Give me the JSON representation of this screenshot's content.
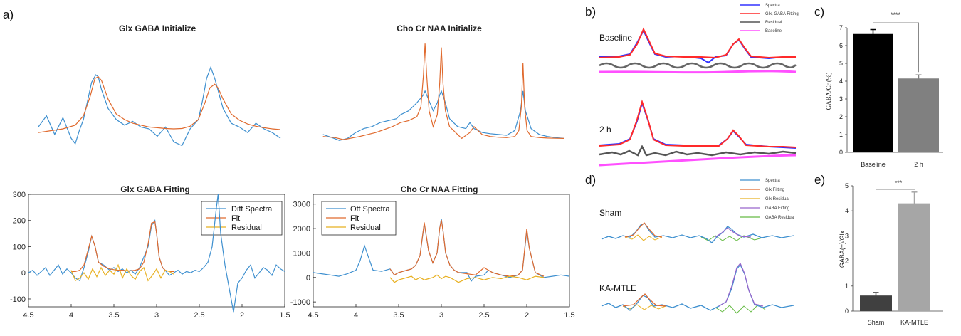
{
  "panel_labels": {
    "a": "a)",
    "b": "b)",
    "c": "c)",
    "d": "d)",
    "e": "e)"
  },
  "colors": {
    "blue": "#3d8fcf",
    "orange": "#e06a2e",
    "yellow": "#e8b020",
    "axis": "#262626",
    "red": "#ff2a2a",
    "magenta": "#ff50ff",
    "gray": "#666666",
    "spec_blue": "#3333ff",
    "green": "#66bb44",
    "purple": "#9966cc"
  },
  "chart_data": [
    {
      "id": "glx_init",
      "type": "line",
      "title": "Glx GABA Initialize",
      "xlim": [
        4.5,
        1.5
      ],
      "ylim": [
        -60,
        240
      ],
      "axes": false,
      "series": [
        {
          "name": "Spectra",
          "x": [
            4.45,
            4.35,
            4.25,
            4.15,
            4.05,
            4.0,
            3.95,
            3.9,
            3.85,
            3.8,
            3.75,
            3.72,
            3.68,
            3.6,
            3.5,
            3.4,
            3.3,
            3.2,
            3.1,
            3.0,
            2.9,
            2.8,
            2.7,
            2.6,
            2.5,
            2.45,
            2.4,
            2.35,
            2.3,
            2.25,
            2.2,
            2.15,
            2.1,
            2.0,
            1.9,
            1.8,
            1.7,
            1.6,
            1.5
          ],
          "y": [
            10,
            40,
            -10,
            35,
            -20,
            -35,
            0,
            30,
            80,
            130,
            150,
            145,
            110,
            60,
            30,
            15,
            25,
            10,
            5,
            -15,
            10,
            -30,
            -40,
            5,
            30,
            80,
            140,
            170,
            140,
            100,
            60,
            40,
            20,
            10,
            -5,
            20,
            5,
            -5,
            -20
          ]
        },
        {
          "name": "Fit",
          "x": [
            4.45,
            4.3,
            4.15,
            4.0,
            3.9,
            3.82,
            3.76,
            3.72,
            3.68,
            3.6,
            3.5,
            3.4,
            3.3,
            3.2,
            3.1,
            3.0,
            2.9,
            2.8,
            2.7,
            2.6,
            2.5,
            2.42,
            2.36,
            2.3,
            2.26,
            2.2,
            2.1,
            2.0,
            1.9,
            1.8,
            1.7,
            1.6,
            1.5
          ],
          "y": [
            -5,
            0,
            5,
            15,
            40,
            90,
            140,
            145,
            135,
            85,
            45,
            30,
            20,
            15,
            10,
            8,
            6,
            5,
            6,
            12,
            30,
            75,
            115,
            125,
            115,
            85,
            45,
            28,
            18,
            12,
            8,
            5,
            3
          ]
        }
      ]
    },
    {
      "id": "cho_init",
      "type": "line",
      "title": "Cho Cr NAA Initialize",
      "xlim": [
        4.5,
        1.5
      ],
      "ylim": [
        -100,
        2600
      ],
      "axes": false,
      "series": [
        {
          "name": "Spectra",
          "x": [
            4.45,
            4.35,
            4.25,
            4.15,
            4.05,
            3.95,
            3.85,
            3.75,
            3.65,
            3.55,
            3.5,
            3.4,
            3.35,
            3.3,
            3.22,
            3.2,
            3.18,
            3.1,
            3.05,
            3.02,
            3.0,
            2.95,
            2.9,
            2.8,
            2.7,
            2.65,
            2.6,
            2.5,
            2.4,
            2.3,
            2.2,
            2.1,
            2.03,
            2.0,
            1.97,
            1.9,
            1.8,
            1.7,
            1.6,
            1.5
          ],
          "y": [
            100,
            30,
            -50,
            0,
            150,
            250,
            300,
            400,
            450,
            500,
            600,
            700,
            800,
            900,
            1100,
            1200,
            1100,
            700,
            900,
            1100,
            1200,
            900,
            500,
            300,
            250,
            400,
            250,
            150,
            120,
            100,
            80,
            200,
            700,
            1200,
            700,
            250,
            100,
            50,
            20,
            0
          ]
        },
        {
          "name": "Fit",
          "x": [
            4.45,
            4.3,
            4.2,
            4.0,
            3.8,
            3.6,
            3.5,
            3.4,
            3.3,
            3.25,
            3.22,
            3.2,
            3.18,
            3.15,
            3.1,
            3.05,
            3.02,
            3.0,
            2.98,
            2.95,
            2.9,
            2.8,
            2.75,
            2.65,
            2.6,
            2.5,
            2.4,
            2.3,
            2.2,
            2.1,
            2.05,
            2.02,
            2.0,
            1.98,
            1.95,
            1.9,
            1.8,
            1.7,
            1.6,
            1.5
          ],
          "y": [
            50,
            20,
            -30,
            50,
            150,
            300,
            400,
            450,
            550,
            800,
            1600,
            2400,
            1600,
            700,
            300,
            600,
            1400,
            2300,
            1400,
            700,
            300,
            100,
            0,
            150,
            300,
            100,
            50,
            30,
            20,
            50,
            200,
            800,
            1900,
            800,
            200,
            50,
            20,
            10,
            5,
            0
          ]
        }
      ]
    },
    {
      "id": "glx_fit",
      "type": "line",
      "title": "Glx GABA Fitting",
      "xlim": [
        4.5,
        1.5
      ],
      "ylim": [
        -130,
        300
      ],
      "xticks": [
        4.5,
        4,
        3.5,
        3,
        2.5,
        2,
        1.5
      ],
      "xticklabels": [
        "4.5",
        "4",
        "3.5",
        "3",
        "2.5",
        "2",
        "1.5"
      ],
      "yticks": [
        -100,
        0,
        100,
        200,
        300
      ],
      "yticklabels": [
        "-100",
        "0",
        "100",
        "200",
        "300"
      ],
      "legend": "top-right",
      "series": [
        {
          "name": "Diff Spectra",
          "color": "blue",
          "x": [
            4.5,
            4.45,
            4.4,
            4.35,
            4.3,
            4.25,
            4.2,
            4.15,
            4.1,
            4.05,
            4.0,
            3.95,
            3.9,
            3.85,
            3.8,
            3.76,
            3.72,
            3.68,
            3.62,
            3.55,
            3.5,
            3.45,
            3.4,
            3.35,
            3.3,
            3.25,
            3.2,
            3.15,
            3.1,
            3.06,
            3.02,
            3.0,
            2.97,
            2.93,
            2.9,
            2.85,
            2.8,
            2.75,
            2.7,
            2.65,
            2.6,
            2.55,
            2.5,
            2.45,
            2.4,
            2.35,
            2.3,
            2.28,
            2.25,
            2.2,
            2.15,
            2.1,
            2.05,
            2.0,
            1.95,
            1.9,
            1.85,
            1.8,
            1.75,
            1.7,
            1.65,
            1.6,
            1.55,
            1.5
          ],
          "y": [
            0,
            10,
            -10,
            5,
            20,
            -10,
            10,
            30,
            -5,
            15,
            0,
            -20,
            -30,
            20,
            80,
            140,
            100,
            40,
            30,
            10,
            20,
            5,
            15,
            0,
            10,
            -5,
            20,
            60,
            100,
            180,
            200,
            150,
            60,
            20,
            10,
            -10,
            0,
            10,
            -5,
            5,
            0,
            10,
            5,
            20,
            40,
            100,
            250,
            300,
            150,
            30,
            -60,
            -150,
            -40,
            -20,
            10,
            30,
            -20,
            0,
            20,
            10,
            -10,
            30,
            15,
            5
          ]
        },
        {
          "name": "Fit",
          "color": "orange",
          "x": [
            4.0,
            3.95,
            3.9,
            3.85,
            3.8,
            3.76,
            3.72,
            3.68,
            3.62,
            3.55,
            3.5,
            3.45,
            3.4,
            3.35,
            3.3,
            3.25,
            3.2,
            3.15,
            3.1,
            3.06,
            3.02,
            3.0,
            2.97,
            2.93,
            2.9,
            2.85,
            2.8
          ],
          "y": [
            5,
            5,
            10,
            30,
            90,
            140,
            100,
            40,
            25,
            15,
            12,
            10,
            10,
            8,
            8,
            10,
            15,
            40,
            110,
            190,
            195,
            150,
            60,
            20,
            10,
            5,
            5
          ]
        },
        {
          "name": "Residual",
          "color": "yellow",
          "x": [
            4.0,
            3.95,
            3.9,
            3.85,
            3.8,
            3.75,
            3.7,
            3.65,
            3.6,
            3.55,
            3.5,
            3.45,
            3.4,
            3.35,
            3.3,
            3.25,
            3.2,
            3.15,
            3.1,
            3.05,
            3.0,
            2.95,
            2.9,
            2.85,
            2.8
          ],
          "y": [
            10,
            -30,
            -20,
            0,
            -25,
            15,
            -15,
            20,
            -10,
            10,
            -5,
            30,
            -20,
            15,
            -10,
            -25,
            5,
            20,
            -30,
            -10,
            15,
            -20,
            10,
            5,
            -5
          ]
        }
      ]
    },
    {
      "id": "cho_fit",
      "type": "line",
      "title": "Cho Cr NAA Fitting",
      "xlim": [
        4.5,
        1.5
      ],
      "ylim": [
        -1200,
        3400
      ],
      "xticks": [
        4.5,
        4,
        3.5,
        3,
        2.5,
        2,
        1.5
      ],
      "xticklabels": [
        "4.5",
        "4",
        "3.5",
        "3",
        "2.5",
        "2",
        "1.5"
      ],
      "yticks": [
        -1000,
        0,
        1000,
        2000,
        3000
      ],
      "yticklabels": [
        "-1000",
        "0",
        "1000",
        "2000",
        "3000"
      ],
      "legend": "top-right",
      "series": [
        {
          "name": "Off Spectra",
          "color": "blue",
          "x": [
            4.5,
            4.4,
            4.3,
            4.2,
            4.1,
            4.0,
            3.95,
            3.9,
            3.85,
            3.8,
            3.7,
            3.6,
            3.55,
            3.5,
            3.45,
            3.4,
            3.35,
            3.3,
            3.25,
            3.2,
            3.15,
            3.1,
            3.05,
            3.02,
            3.0,
            2.98,
            2.95,
            2.9,
            2.85,
            2.8,
            2.7,
            2.65,
            2.6,
            2.5,
            2.45,
            2.4,
            2.3,
            2.2,
            2.1,
            2.05,
            2.0,
            1.97,
            1.9,
            1.8,
            1.7,
            1.6,
            1.5
          ],
          "y": [
            200,
            150,
            100,
            50,
            150,
            300,
            700,
            1300,
            800,
            300,
            250,
            350,
            100,
            200,
            250,
            300,
            350,
            500,
            900,
            2200,
            1100,
            600,
            1000,
            2000,
            2400,
            1900,
            1000,
            500,
            300,
            200,
            200,
            -150,
            50,
            100,
            300,
            200,
            100,
            0,
            100,
            300,
            1900,
            1200,
            200,
            0,
            50,
            100,
            50
          ]
        },
        {
          "name": "Fit",
          "color": "orange",
          "x": [
            3.6,
            3.55,
            3.5,
            3.45,
            3.4,
            3.35,
            3.3,
            3.25,
            3.2,
            3.15,
            3.1,
            3.05,
            3.02,
            3.0,
            2.98,
            2.95,
            2.9,
            2.85,
            2.8,
            2.7,
            2.6,
            2.5,
            2.45,
            2.4,
            2.3,
            2.2,
            2.1,
            2.05,
            2.0,
            1.97,
            1.9,
            1.8
          ],
          "y": [
            350,
            100,
            200,
            250,
            300,
            350,
            500,
            900,
            2250,
            1100,
            600,
            1000,
            2000,
            2350,
            1900,
            1000,
            500,
            300,
            200,
            150,
            100,
            400,
            300,
            200,
            100,
            50,
            100,
            300,
            2000,
            1200,
            200,
            50
          ]
        },
        {
          "name": "Residual",
          "color": "yellow",
          "x": [
            3.6,
            3.55,
            3.5,
            3.45,
            3.4,
            3.35,
            3.3,
            3.25,
            3.2,
            3.15,
            3.1,
            3.05,
            3.0,
            2.95,
            2.9,
            2.85,
            2.8,
            2.7,
            2.6,
            2.5,
            2.4,
            2.3,
            2.2,
            2.1,
            2.0,
            1.9,
            1.8
          ],
          "y": [
            0,
            -200,
            -100,
            -50,
            0,
            50,
            -100,
            0,
            -100,
            -50,
            0,
            100,
            -50,
            50,
            0,
            -100,
            -200,
            -50,
            0,
            -100,
            0,
            -50,
            50,
            0,
            -100,
            50,
            0
          ]
        }
      ]
    },
    {
      "id": "gaba_cr",
      "type": "bar",
      "categories": [
        "Baseline",
        "2 h"
      ],
      "values": [
        6.65,
        4.15
      ],
      "errors": [
        0.25,
        0.2
      ],
      "colors": [
        "#000000",
        "#808080"
      ],
      "ylabel": "GABA/Cr (%)",
      "ylim": [
        0,
        7
      ],
      "yticks": [
        0,
        1,
        2,
        3,
        4,
        5,
        6,
        7
      ],
      "yticklabels": [
        "0",
        "1",
        "2",
        "3",
        "4",
        "5",
        "6",
        "7"
      ],
      "annotation": "****"
    },
    {
      "id": "gaba_glx",
      "type": "bar",
      "categories": [
        "Sham",
        "KA-MTLE"
      ],
      "values": [
        0.62,
        4.3
      ],
      "errors": [
        0.12,
        0.45
      ],
      "colors": [
        "#404040",
        "#a6a6a6"
      ],
      "ylabel": "GABA(+)/Glx",
      "ylim": [
        0,
        5
      ],
      "yticks": [
        0,
        1,
        2,
        3,
        4,
        5
      ],
      "yticklabels": [
        "0",
        "1",
        "2",
        "3",
        "4",
        "5"
      ],
      "annotation": "***"
    }
  ],
  "panel_b": {
    "legend": [
      "Spectra",
      "Glx, GABA Fitting",
      "Residual",
      "Baseline"
    ],
    "rows": [
      "Baseline",
      "2 h"
    ]
  },
  "panel_d": {
    "legend": [
      "Spectra",
      "Glx Fitting",
      "Glx Residual",
      "GABA Fitting",
      "GABA Residual"
    ],
    "rows": [
      "Sham",
      "KA-MTLE"
    ]
  }
}
